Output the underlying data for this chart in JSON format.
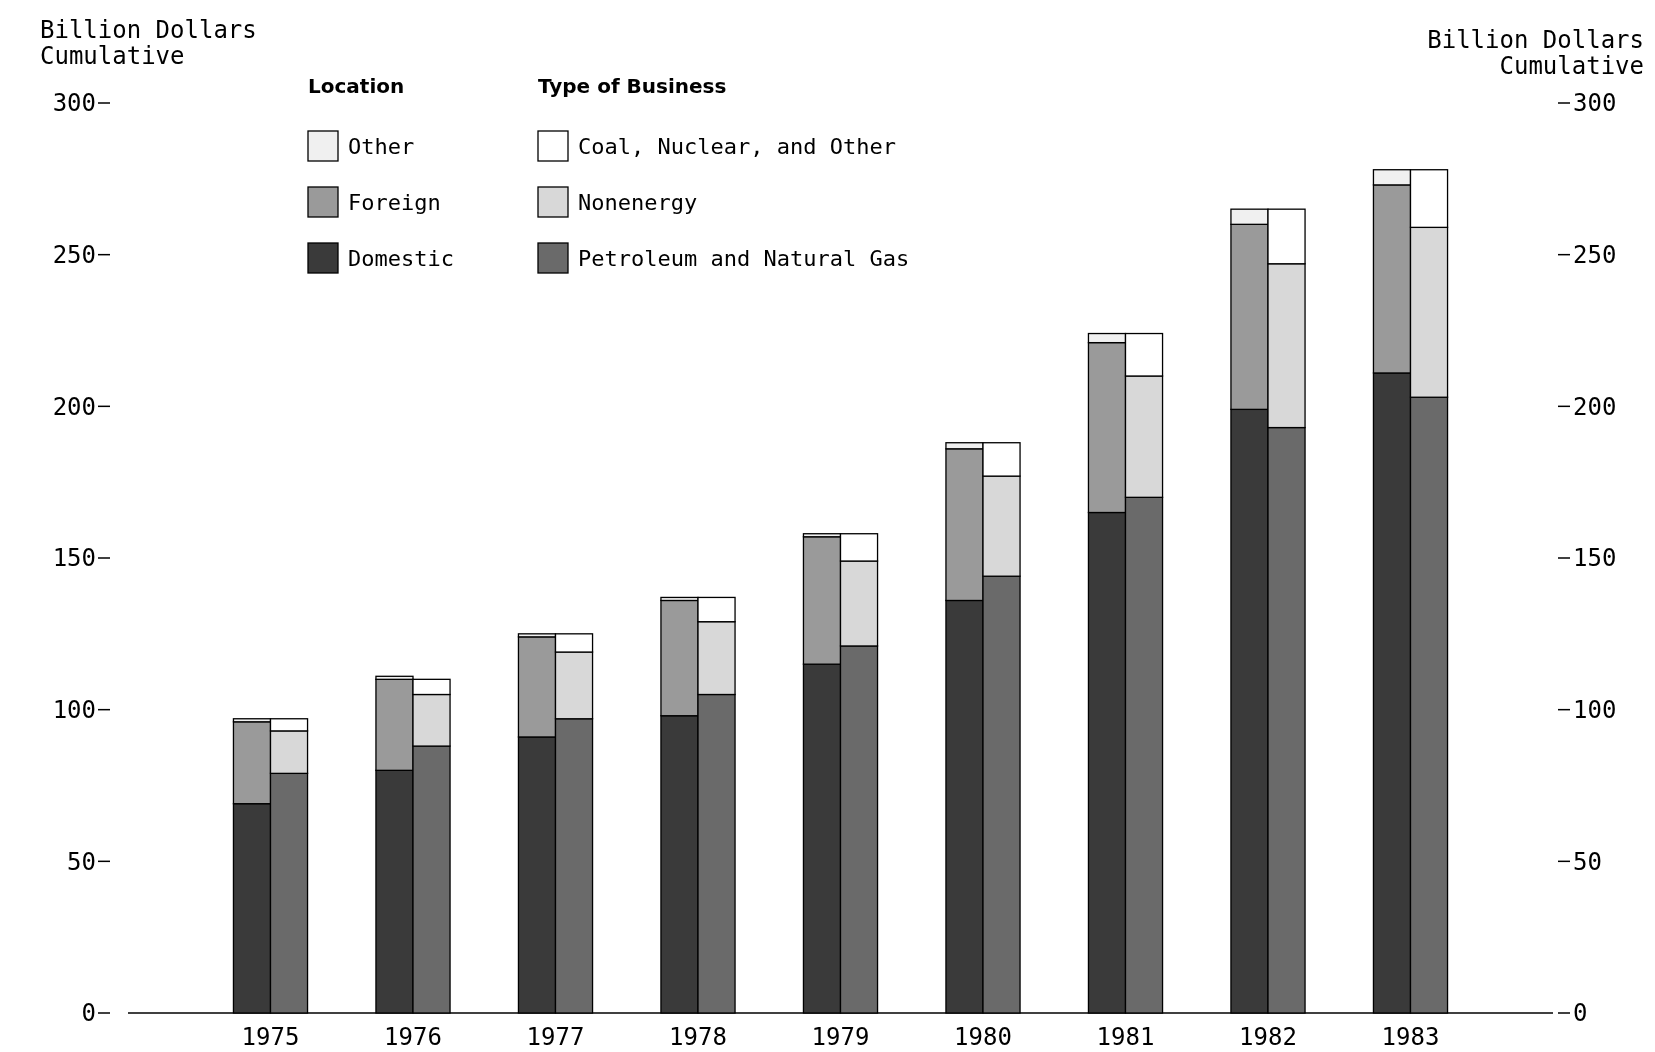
{
  "chart_data": {
    "type": "bar",
    "ylabel": "Billion Dollars\nCumulative",
    "y2label": "Billion Dollars\nCumulative",
    "xlim": [
      1974,
      1984
    ],
    "xticks": [
      1975,
      1976,
      1977,
      1978,
      1979,
      1980,
      1981,
      1982,
      1983
    ],
    "ylim": [
      0,
      300
    ],
    "yticks": [
      0,
      50,
      100,
      150,
      200,
      250,
      300
    ],
    "y2lim": [
      0,
      300
    ],
    "y2ticks": [
      0,
      50,
      100,
      150,
      200,
      250,
      300
    ],
    "legend": "top left",
    "annotations": [
      "Location",
      "Type of Business"
    ],
    "series": [
      {
        "name": "Domestic",
        "color": "#3a3a3a",
        "x": [
          1974.87,
          1975.87,
          1976.87,
          1977.87,
          1978.87,
          1979.87,
          1980.87,
          1981.87,
          1982.87
        ],
        "base": [
          0,
          0,
          0,
          0,
          0,
          0,
          0,
          0,
          0
        ],
        "values": [
          69,
          80,
          91,
          98,
          115,
          136,
          165,
          199,
          211
        ]
      },
      {
        "name": "Foreign",
        "color": "#9a9a9a",
        "x": [
          1974.87,
          1975.87,
          1976.87,
          1977.87,
          1978.87,
          1979.87,
          1980.87,
          1981.87,
          1982.87
        ],
        "base": [
          69,
          80,
          91,
          98,
          115,
          136,
          165,
          199,
          211
        ],
        "values": [
          27,
          30,
          33,
          38,
          42,
          50,
          56,
          61,
          62
        ]
      },
      {
        "name": "Other",
        "color": "#f0f0f0",
        "x": [
          1974.87,
          1975.87,
          1976.87,
          1977.87,
          1978.87,
          1979.87,
          1980.87,
          1981.87,
          1982.87
        ],
        "base": [
          96,
          110,
          124,
          136,
          157,
          186,
          221,
          260,
          273
        ],
        "values": [
          1,
          1,
          1,
          1,
          1,
          2,
          3,
          5,
          5
        ]
      },
      {
        "name": "Petroleum and Natural Gas",
        "color": "#6a6a6a",
        "x": [
          1975.13,
          1976.13,
          1977.13,
          1978.13,
          1979.13,
          1980.13,
          1981.13,
          1982.13,
          1983.13
        ],
        "base": [
          0,
          0,
          0,
          0,
          0,
          0,
          0,
          0,
          0
        ],
        "values": [
          79,
          88,
          97,
          105,
          121,
          144,
          170,
          193,
          203
        ]
      },
      {
        "name": "Nonenergy",
        "color": "#d8d8d8",
        "x": [
          1975.13,
          1976.13,
          1977.13,
          1978.13,
          1979.13,
          1980.13,
          1981.13,
          1982.13,
          1983.13
        ],
        "base": [
          79,
          88,
          97,
          105,
          121,
          144,
          170,
          193,
          203
        ],
        "values": [
          14,
          17,
          22,
          24,
          28,
          33,
          40,
          54,
          56
        ]
      },
      {
        "name": "Coal, Nuclear, and Other",
        "color": "#ffffff",
        "x": [
          1975.13,
          1976.13,
          1977.13,
          1978.13,
          1979.13,
          1980.13,
          1981.13,
          1982.13,
          1983.13
        ],
        "base": [
          93,
          105,
          119,
          129,
          149,
          177,
          210,
          247,
          259
        ],
        "values": [
          4,
          5,
          6,
          8,
          9,
          11,
          14,
          18,
          19
        ]
      }
    ]
  }
}
